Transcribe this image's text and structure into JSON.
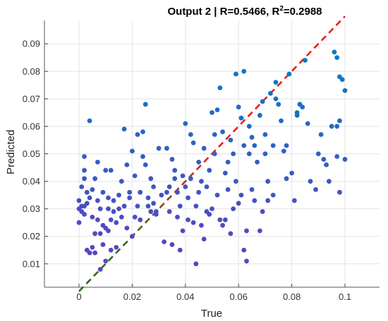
{
  "chart_data": {
    "type": "scatter",
    "title": "Output 2 | R=0.5466, R",
    "title_superscript": "2",
    "title_suffix": "=0.2988",
    "xlabel": "True",
    "ylabel": "Predicted",
    "xlim": [
      -0.013,
      0.113
    ],
    "ylim": [
      0.0015,
      0.0985
    ],
    "x_ticks": [
      "0",
      "0.02",
      "0.04",
      "0.06",
      "0.08",
      "0.1"
    ],
    "y_ticks": [
      "0.01",
      "0.02",
      "0.03",
      "0.04",
      "0.05",
      "0.06",
      "0.07",
      "0.08",
      "0.09"
    ],
    "grid": true,
    "reference_line": {
      "x": [
        0,
        0.1
      ],
      "y": [
        0,
        0.1
      ],
      "style": "dashed",
      "color_start": "#2e6b1a",
      "color_end": "#e8201a"
    },
    "point_colors": {
      "low": "#5546c2",
      "high": "#0a79c6"
    },
    "points": [
      [
        0.0,
        0.025
      ],
      [
        0.0,
        0.03
      ],
      [
        0.0,
        0.033
      ],
      [
        0.001,
        0.031
      ],
      [
        0.001,
        0.029
      ],
      [
        0.001,
        0.038
      ],
      [
        0.002,
        0.041
      ],
      [
        0.002,
        0.031
      ],
      [
        0.002,
        0.044
      ],
      [
        0.002,
        0.049
      ],
      [
        0.002,
        0.028
      ],
      [
        0.003,
        0.032
      ],
      [
        0.003,
        0.015
      ],
      [
        0.003,
        0.036
      ],
      [
        0.004,
        0.062
      ],
      [
        0.004,
        0.014
      ],
      [
        0.004,
        0.034
      ],
      [
        0.005,
        0.016
      ],
      [
        0.005,
        0.037
      ],
      [
        0.005,
        0.027
      ],
      [
        0.006,
        0.021
      ],
      [
        0.006,
        0.041
      ],
      [
        0.006,
        0.014
      ],
      [
        0.007,
        0.026
      ],
      [
        0.007,
        0.033
      ],
      [
        0.007,
        0.047
      ],
      [
        0.008,
        0.021
      ],
      [
        0.008,
        0.008
      ],
      [
        0.008,
        0.03
      ],
      [
        0.009,
        0.024
      ],
      [
        0.009,
        0.017
      ],
      [
        0.009,
        0.036
      ],
      [
        0.01,
        0.023
      ],
      [
        0.01,
        0.011
      ],
      [
        0.01,
        0.044
      ],
      [
        0.011,
        0.03
      ],
      [
        0.011,
        0.022
      ],
      [
        0.011,
        0.034
      ],
      [
        0.012,
        0.026
      ],
      [
        0.012,
        0.044
      ],
      [
        0.012,
        0.015
      ],
      [
        0.013,
        0.033
      ],
      [
        0.013,
        0.029
      ],
      [
        0.014,
        0.016
      ],
      [
        0.014,
        0.025
      ],
      [
        0.015,
        0.035
      ],
      [
        0.015,
        0.03
      ],
      [
        0.016,
        0.04
      ],
      [
        0.016,
        0.027
      ],
      [
        0.017,
        0.031
      ],
      [
        0.017,
        0.059
      ],
      [
        0.018,
        0.046
      ],
      [
        0.018,
        0.023
      ],
      [
        0.019,
        0.034
      ],
      [
        0.019,
        0.036
      ],
      [
        0.02,
        0.02
      ],
      [
        0.02,
        0.051
      ],
      [
        0.021,
        0.042
      ],
      [
        0.021,
        0.027
      ],
      [
        0.022,
        0.031
      ],
      [
        0.022,
        0.057
      ],
      [
        0.023,
        0.026
      ],
      [
        0.023,
        0.036
      ],
      [
        0.024,
        0.049
      ],
      [
        0.024,
        0.058
      ],
      [
        0.025,
        0.068
      ],
      [
        0.025,
        0.046
      ],
      [
        0.026,
        0.031
      ],
      [
        0.026,
        0.034
      ],
      [
        0.027,
        0.029
      ],
      [
        0.027,
        0.041
      ],
      [
        0.028,
        0.038
      ],
      [
        0.028,
        0.032
      ],
      [
        0.029,
        0.029
      ],
      [
        0.029,
        0.028
      ],
      [
        0.03,
        0.052
      ],
      [
        0.031,
        0.035
      ],
      [
        0.032,
        0.018
      ],
      [
        0.033,
        0.036
      ],
      [
        0.033,
        0.052
      ],
      [
        0.034,
        0.038
      ],
      [
        0.034,
        0.029
      ],
      [
        0.035,
        0.017
      ],
      [
        0.035,
        0.048
      ],
      [
        0.036,
        0.041
      ],
      [
        0.036,
        0.044
      ],
      [
        0.037,
        0.027
      ],
      [
        0.037,
        0.036
      ],
      [
        0.038,
        0.031
      ],
      [
        0.038,
        0.015
      ],
      [
        0.039,
        0.042
      ],
      [
        0.039,
        0.022
      ],
      [
        0.04,
        0.038
      ],
      [
        0.04,
        0.061
      ],
      [
        0.041,
        0.034
      ],
      [
        0.041,
        0.026
      ],
      [
        0.042,
        0.057
      ],
      [
        0.042,
        0.041
      ],
      [
        0.043,
        0.054
      ],
      [
        0.043,
        0.025
      ],
      [
        0.044,
        0.01
      ],
      [
        0.044,
        0.031
      ],
      [
        0.045,
        0.036
      ],
      [
        0.045,
        0.047
      ],
      [
        0.046,
        0.024
      ],
      [
        0.046,
        0.04
      ],
      [
        0.047,
        0.019
      ],
      [
        0.047,
        0.052
      ],
      [
        0.048,
        0.038
      ],
      [
        0.048,
        0.029
      ],
      [
        0.049,
        0.028
      ],
      [
        0.049,
        0.044
      ],
      [
        0.05,
        0.065
      ],
      [
        0.05,
        0.03
      ],
      [
        0.051,
        0.057
      ],
      [
        0.051,
        0.05
      ],
      [
        0.052,
        0.066
      ],
      [
        0.052,
        0.035
      ],
      [
        0.053,
        0.074
      ],
      [
        0.053,
        0.026
      ],
      [
        0.054,
        0.058
      ],
      [
        0.054,
        0.024
      ],
      [
        0.055,
        0.043
      ],
      [
        0.055,
        0.026
      ],
      [
        0.056,
        0.047
      ],
      [
        0.056,
        0.037
      ],
      [
        0.057,
        0.021
      ],
      [
        0.057,
        0.055
      ],
      [
        0.058,
        0.05
      ],
      [
        0.058,
        0.03
      ],
      [
        0.059,
        0.04
      ],
      [
        0.059,
        0.079
      ],
      [
        0.06,
        0.067
      ],
      [
        0.06,
        0.032
      ],
      [
        0.061,
        0.063
      ],
      [
        0.061,
        0.035
      ],
      [
        0.062,
        0.08
      ],
      [
        0.062,
        0.053
      ],
      [
        0.062,
        0.015
      ],
      [
        0.063,
        0.011
      ],
      [
        0.063,
        0.022
      ],
      [
        0.064,
        0.06
      ],
      [
        0.064,
        0.05
      ],
      [
        0.065,
        0.056
      ],
      [
        0.065,
        0.037
      ],
      [
        0.066,
        0.033
      ],
      [
        0.066,
        0.053
      ],
      [
        0.067,
        0.047
      ],
      [
        0.068,
        0.064
      ],
      [
        0.068,
        0.022
      ],
      [
        0.069,
        0.029
      ],
      [
        0.069,
        0.069
      ],
      [
        0.07,
        0.057
      ],
      [
        0.07,
        0.05
      ],
      [
        0.071,
        0.04
      ],
      [
        0.071,
        0.033
      ],
      [
        0.072,
        0.072
      ],
      [
        0.073,
        0.053
      ],
      [
        0.073,
        0.035
      ],
      [
        0.074,
        0.07
      ],
      [
        0.074,
        0.076
      ],
      [
        0.075,
        0.068
      ],
      [
        0.076,
        0.062
      ],
      [
        0.077,
        0.051
      ],
      [
        0.078,
        0.041
      ],
      [
        0.078,
        0.053
      ],
      [
        0.079,
        0.079
      ],
      [
        0.08,
        0.043
      ],
      [
        0.081,
        0.033
      ],
      [
        0.082,
        0.064
      ],
      [
        0.082,
        0.065
      ],
      [
        0.083,
        0.068
      ],
      [
        0.084,
        0.067
      ],
      [
        0.085,
        0.084
      ],
      [
        0.086,
        0.061
      ],
      [
        0.087,
        0.04
      ],
      [
        0.089,
        0.037
      ],
      [
        0.09,
        0.05
      ],
      [
        0.091,
        0.057
      ],
      [
        0.092,
        0.048
      ],
      [
        0.093,
        0.046
      ],
      [
        0.094,
        0.04
      ],
      [
        0.095,
        0.06
      ],
      [
        0.096,
        0.087
      ],
      [
        0.097,
        0.085
      ],
      [
        0.097,
        0.06
      ],
      [
        0.097,
        0.049
      ],
      [
        0.098,
        0.078
      ],
      [
        0.098,
        0.062
      ],
      [
        0.098,
        0.036
      ],
      [
        0.099,
        0.077
      ],
      [
        0.1,
        0.073
      ],
      [
        0.1,
        0.048
      ]
    ]
  }
}
